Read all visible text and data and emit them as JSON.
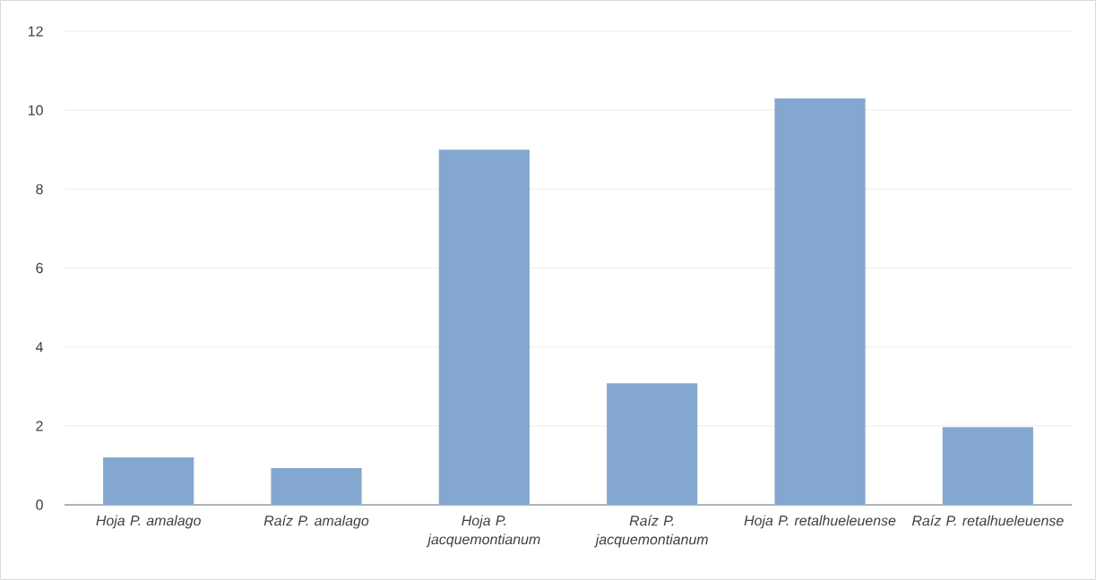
{
  "chart_data": {
    "type": "bar",
    "categories": [
      "Hoja P. amalago",
      "Raíz P. amalago",
      "Hoja P. jacquemontianum",
      "Raíz P. jacquemontianum",
      "Hoja P. retalhueleuense",
      "Raíz P. retalhueleuense"
    ],
    "values": [
      1.2,
      0.93,
      9.0,
      3.08,
      10.3,
      1.97
    ],
    "color": "#84a7d0",
    "ylim": [
      0,
      12
    ],
    "yticks": [
      0,
      2,
      4,
      6,
      8,
      10,
      12
    ],
    "grid": "y"
  }
}
